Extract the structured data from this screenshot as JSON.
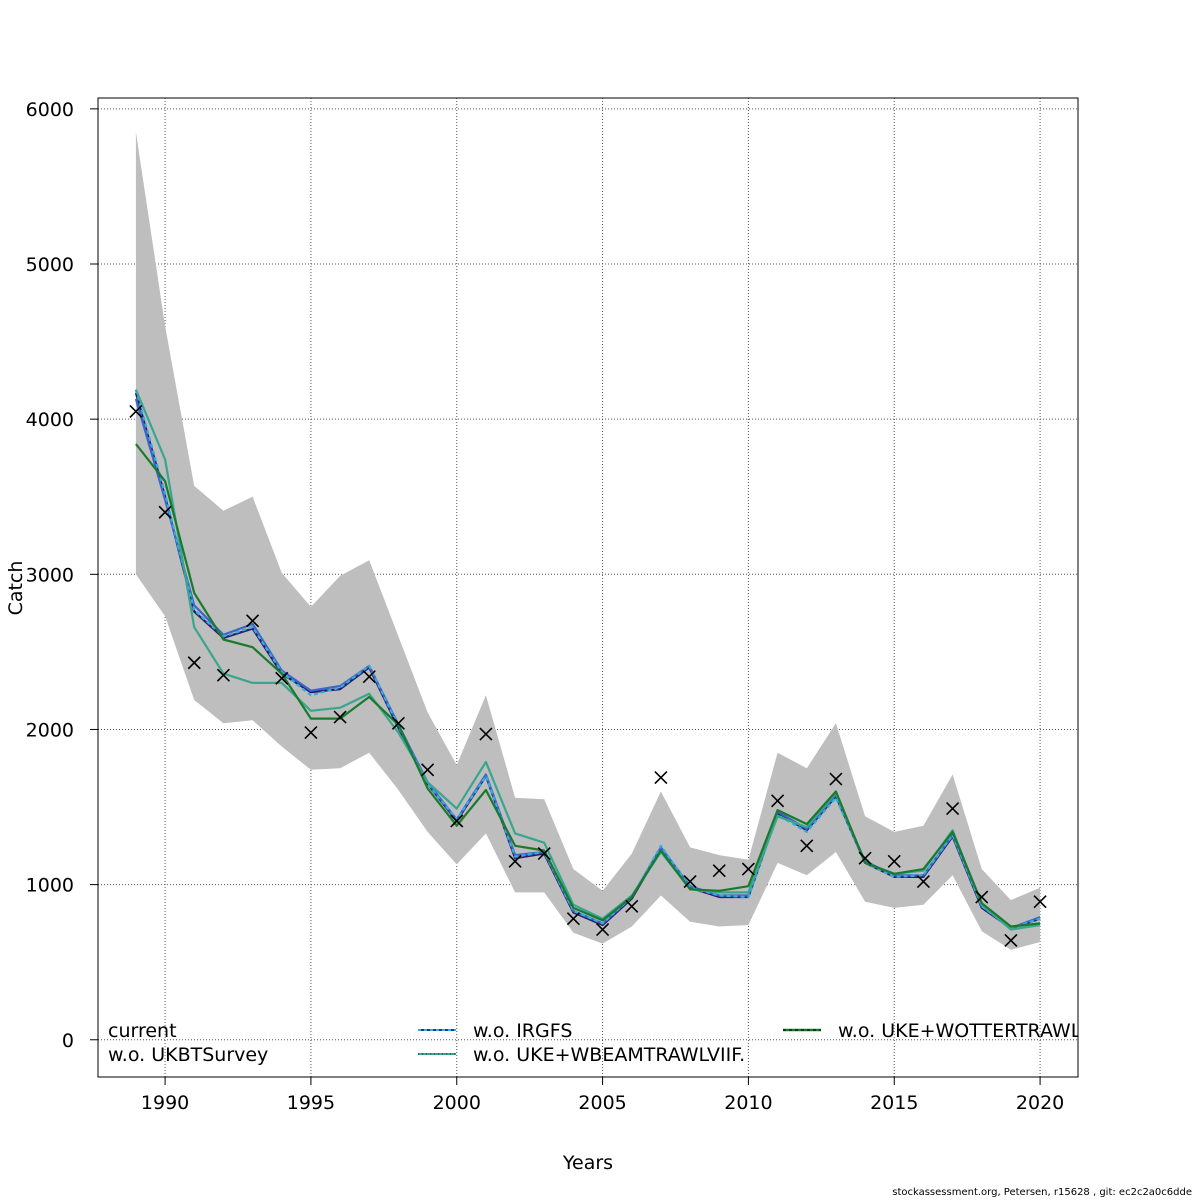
{
  "chart_data": {
    "type": "line",
    "xlabel": "Years",
    "ylabel": "Catch",
    "xlim": [
      1987.7,
      2021.3
    ],
    "ylim": [
      -240,
      6070
    ],
    "xticks": [
      1990,
      1995,
      2000,
      2005,
      2010,
      2015,
      2020
    ],
    "yticks": [
      0,
      1000,
      2000,
      3000,
      4000,
      5000,
      6000
    ],
    "grid": true,
    "legend_position": "bottom",
    "years": [
      1989,
      1990,
      1991,
      1992,
      1993,
      1994,
      1995,
      1996,
      1997,
      1998,
      1999,
      2000,
      2001,
      2002,
      2003,
      2004,
      2005,
      2006,
      2007,
      2008,
      2009,
      2010,
      2011,
      2012,
      2013,
      2014,
      2015,
      2016,
      2017,
      2018,
      2019,
      2020
    ],
    "confidence_band": {
      "upper": [
        5850,
        4600,
        3570,
        3410,
        3500,
        3010,
        2790,
        2990,
        3090,
        2600,
        2110,
        1770,
        2220,
        1560,
        1550,
        1100,
        960,
        1200,
        1600,
        1240,
        1190,
        1160,
        1850,
        1750,
        2040,
        1440,
        1340,
        1380,
        1710,
        1100,
        900,
        980
      ],
      "lower": [
        3000,
        2730,
        2190,
        2040,
        2060,
        1890,
        1740,
        1750,
        1850,
        1610,
        1340,
        1130,
        1330,
        950,
        950,
        690,
        620,
        730,
        930,
        760,
        730,
        740,
        1140,
        1060,
        1210,
        890,
        850,
        870,
        1060,
        700,
        580,
        630
      ]
    },
    "observed": {
      "label": "observed",
      "values": [
        4050,
        3400,
        2430,
        2350,
        2700,
        2330,
        1980,
        2080,
        2340,
        2040,
        1740,
        1410,
        1970,
        1150,
        1200,
        780,
        710,
        860,
        1690,
        1020,
        1090,
        1100,
        1540,
        1250,
        1680,
        1170,
        1150,
        1020,
        1490,
        920,
        640,
        890
      ]
    },
    "series": [
      {
        "name": "current",
        "color": "#2e1a6e",
        "dash": "",
        "values": [
          4170,
          3500,
          2760,
          2590,
          2650,
          2360,
          2240,
          2260,
          2400,
          2010,
          1650,
          1410,
          1700,
          1170,
          1200,
          820,
          740,
          910,
          1230,
          980,
          920,
          920,
          1460,
          1350,
          1570,
          1140,
          1050,
          1050,
          1310,
          850,
          720,
          780
        ]
      },
      {
        "name": "w.o. UKBTSurvey",
        "color": "#3f65c8",
        "dash": "",
        "values": [
          4130,
          3480,
          2800,
          2610,
          2680,
          2380,
          2250,
          2280,
          2410,
          2030,
          1660,
          1420,
          1710,
          1190,
          1210,
          830,
          750,
          920,
          1240,
          990,
          930,
          930,
          1470,
          1360,
          1580,
          1150,
          1060,
          1060,
          1320,
          860,
          720,
          790
        ]
      },
      {
        "name": "w.o. IRGFS",
        "color": "#2eb0d8",
        "dash": "4,3",
        "values": [
          4190,
          3520,
          2770,
          2600,
          2660,
          2370,
          2220,
          2270,
          2410,
          2020,
          1650,
          1420,
          1700,
          1180,
          1210,
          830,
          750,
          920,
          1250,
          980,
          930,
          920,
          1450,
          1340,
          1560,
          1140,
          1050,
          1060,
          1320,
          860,
          720,
          780
        ]
      },
      {
        "name": "w.o. UKE+WBEAMTRAWLVIIF.",
        "color": "#3aa58e",
        "dash": "",
        "values": [
          4190,
          3740,
          2660,
          2360,
          2300,
          2300,
          2120,
          2140,
          2230,
          1980,
          1660,
          1490,
          1790,
          1330,
          1270,
          870,
          780,
          930,
          1210,
          970,
          950,
          950,
          1440,
          1370,
          1590,
          1140,
          1070,
          1090,
          1350,
          870,
          710,
          740
        ]
      },
      {
        "name": "w.o. UKE+WOTTERTRAWL",
        "color": "#1a7a2c",
        "dash": "",
        "values": [
          3840,
          3600,
          2880,
          2580,
          2530,
          2360,
          2070,
          2070,
          2210,
          2030,
          1620,
          1380,
          1610,
          1250,
          1220,
          850,
          770,
          920,
          1220,
          970,
          960,
          990,
          1480,
          1390,
          1600,
          1140,
          1070,
          1100,
          1340,
          880,
          730,
          750
        ]
      }
    ],
    "legend": {
      "col1": [
        "current",
        "w.o. UKBTSurvey"
      ],
      "col2": [
        "w.o. IRGFS",
        "w.o. UKE+WBEAMTRAWLVIIF."
      ],
      "col3": [
        "w.o. UKE+WOTTERTRAWL"
      ]
    }
  },
  "footer": "stockassessment.org, Petersen, r15628 , git: ec2c2a0c6dde"
}
